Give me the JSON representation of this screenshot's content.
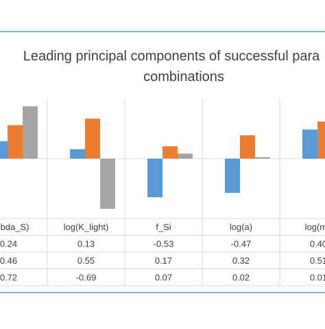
{
  "chart_data": {
    "type": "bar",
    "title_lines": [
      "Leading principal components of successful para",
      "combinations"
    ],
    "categories": [
      "ambda_S)",
      "log(K_light)",
      "f_Si",
      "log(a)",
      "log(mu"
    ],
    "series": [
      {
        "values": [
          0.24,
          0.13,
          -0.53,
          -0.47,
          0.4
        ],
        "labels": [
          "0.24",
          "0.13",
          "-0.53",
          "-0.47",
          "0.40"
        ]
      },
      {
        "values": [
          0.46,
          0.55,
          0.17,
          0.32,
          0.51
        ],
        "labels": [
          "0.46",
          "0.55",
          "0.17",
          "0.32",
          "0.51"
        ]
      },
      {
        "values": [
          0.72,
          -0.69,
          0.07,
          0.02,
          0.01
        ],
        "labels": [
          "0.72",
          "-0.69",
          "0.07",
          "0.02",
          "0.01"
        ]
      }
    ],
    "colors": [
      "#5b9bd5",
      "#ed7d31",
      "#a5a5a5"
    ],
    "ylim": [
      -0.7,
      0.75
    ],
    "grid": true,
    "legend": "none"
  }
}
